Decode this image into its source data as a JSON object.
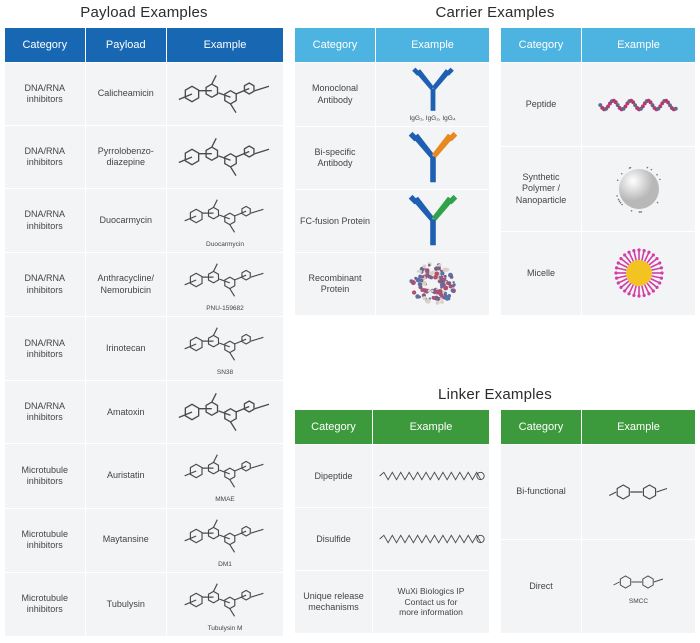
{
  "sections": {
    "payload_title": "Payload Examples",
    "carrier_title": "Carrier Examples",
    "linker_title": "Linker Examples"
  },
  "payload": {
    "header_color": "#1867b2",
    "headers": [
      "Category",
      "Payload",
      "Example"
    ],
    "row_bg": "#f2f4f5",
    "rows": [
      {
        "category": "DNA/RNA inhibitors",
        "payload": "Calicheamicin",
        "vis": "chem"
      },
      {
        "category": "DNA/RNA inhibitors",
        "payload": "Pyrrolobenzo-diazepine",
        "vis": "chem"
      },
      {
        "category": "DNA/RNA inhibitors",
        "payload": "Duocarmycin",
        "vis": "chem",
        "caption": "Duocarmycin"
      },
      {
        "category": "DNA/RNA inhibitors",
        "payload": "Anthracycline/ Nemorubicin",
        "vis": "chem",
        "caption": "PNU-159682"
      },
      {
        "category": "DNA/RNA inhibitors",
        "payload": "Irinotecan",
        "vis": "chem",
        "caption": "SN38"
      },
      {
        "category": "DNA/RNA inhibitors",
        "payload": "Amatoxin",
        "vis": "chem"
      },
      {
        "category": "Microtubule inhibitors",
        "payload": "Auristatin",
        "vis": "chem",
        "caption": "MMAE"
      },
      {
        "category": "Microtubule inhibitors",
        "payload": "Maytansine",
        "vis": "chem",
        "caption": "DM1"
      },
      {
        "category": "Microtubule inhibitors",
        "payload": "Tubulysin",
        "vis": "chem",
        "caption": "Tubulysin M"
      }
    ]
  },
  "carrier": {
    "header_color": "#4db3e0",
    "headers": [
      "Category",
      "Example"
    ],
    "row_bg": "#f2f4f5",
    "left_rows": [
      {
        "category": "Monoclonal Antibody",
        "vis": "antibody_bb",
        "caption": "IgG₁, IgG₂, IgG₄"
      },
      {
        "category": "Bi-specific Antibody",
        "vis": "antibody_bo"
      },
      {
        "category": "FC-fusion Protein",
        "vis": "antibody_bg"
      },
      {
        "category": "Recombinant Protein",
        "vis": "blob"
      }
    ],
    "right_rows": [
      {
        "category": "Peptide",
        "vis": "peptide"
      },
      {
        "category": "Synthetic Polymer / Nanoparticle",
        "vis": "sphere"
      },
      {
        "category": "Micelle",
        "vis": "micelle"
      }
    ]
  },
  "linker": {
    "header_color": "#3c9a3c",
    "headers": [
      "Category",
      "Example"
    ],
    "row_bg": "#f2f4f5",
    "left_rows": [
      {
        "category": "Dipeptide",
        "vis": "chain"
      },
      {
        "category": "Disulfide",
        "vis": "chain"
      },
      {
        "category": "Unique release mechanisms",
        "text": "WuXi Biologics IP\nContact us for\nmore information"
      }
    ],
    "right_rows": [
      {
        "category": "Bi-functional",
        "vis": "smallchem"
      },
      {
        "category": "Direct",
        "vis": "smallchem",
        "caption": "SMCC"
      }
    ]
  },
  "vis_colors": {
    "chem_line": "#4a4a4a",
    "antibody_blue": "#1e5fb4",
    "antibody_orange": "#e68a1f",
    "antibody_green": "#2fa24a",
    "peptide": "#b43a6e",
    "sphere_fill": "#b8b8b8",
    "sphere_hl": "#ffffff",
    "micelle_y": "#f3c321",
    "micelle_p": "#d23da6",
    "blob": "#9a6b8a"
  }
}
